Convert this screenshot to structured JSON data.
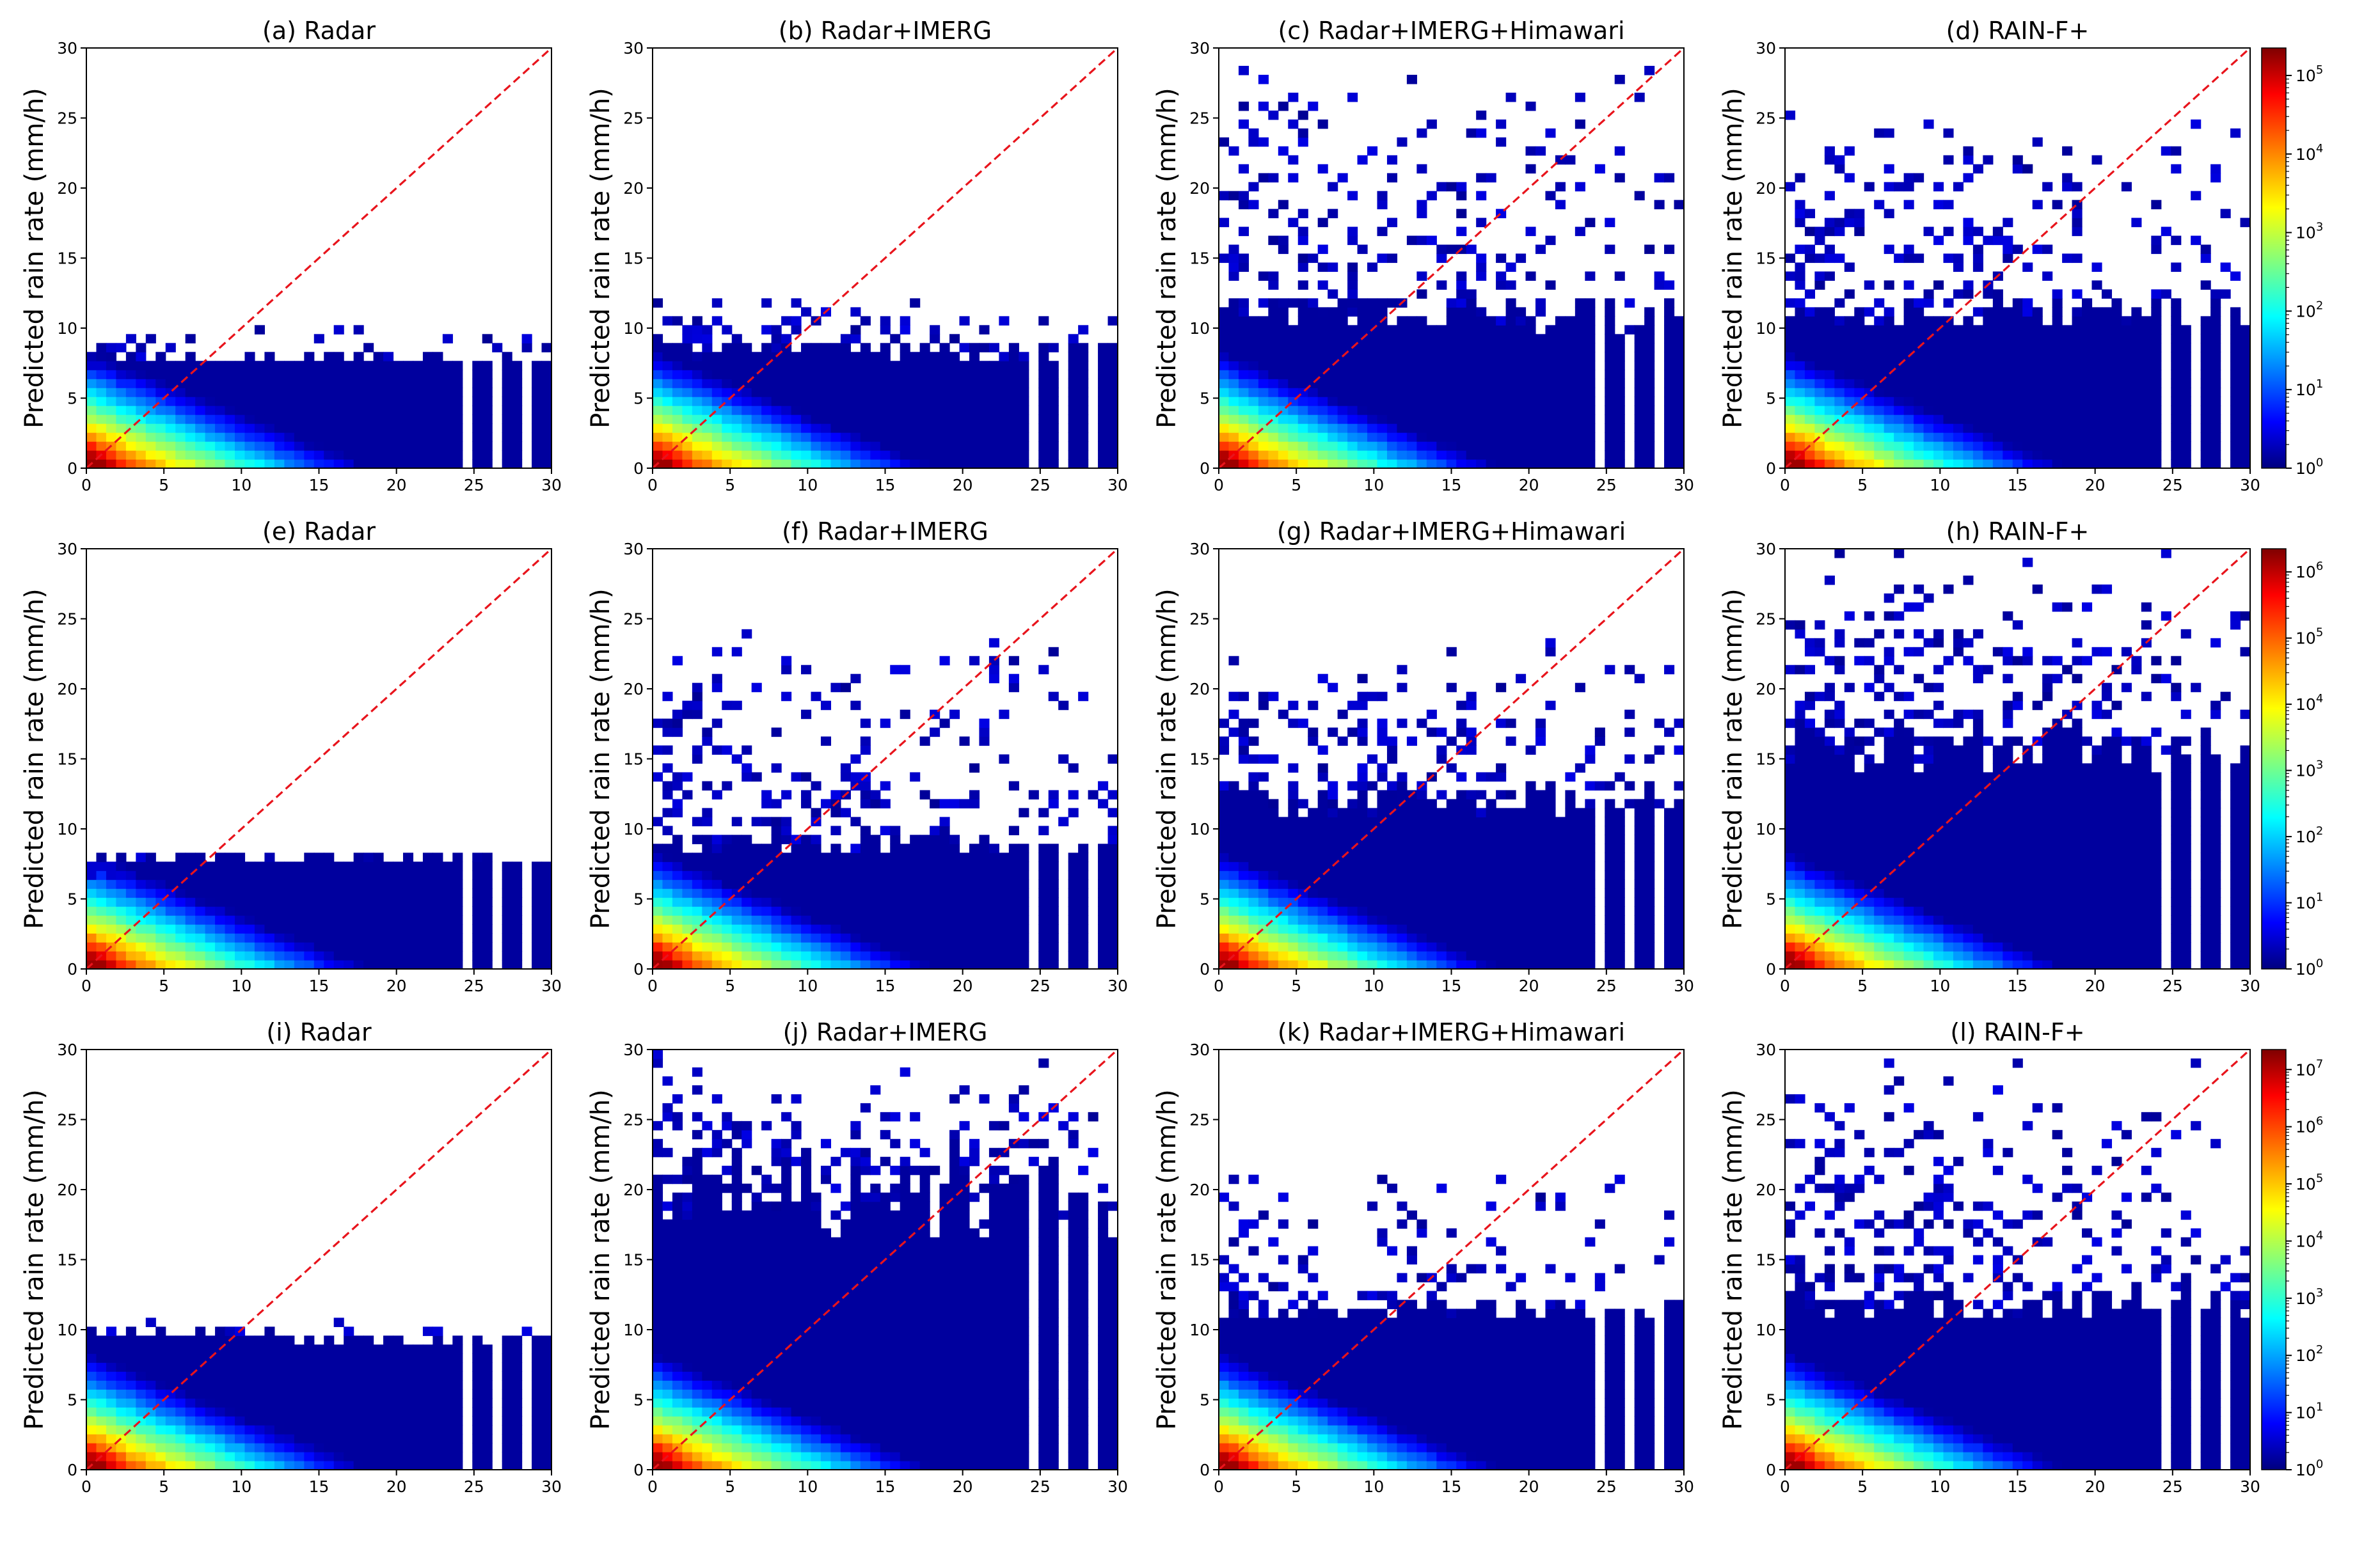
{
  "figure": {
    "ylabel": "Predicted rain rate (mm/h)"
  },
  "chart_data": [
    {
      "type": "heatmap",
      "title": "(a) Radar",
      "ylabel": "Predicted rain rate (mm/h)",
      "xlim": [
        0,
        30
      ],
      "ylim": [
        0,
        30
      ],
      "xticks": [
        "0",
        "5",
        "10",
        "15",
        "20",
        "25",
        "30"
      ],
      "yticks": [
        "0",
        "5",
        "10",
        "15",
        "20",
        "25",
        "30"
      ],
      "cap": 8,
      "capJitter": 0.9,
      "scatterMax": 10,
      "scatterDensity": 0.35,
      "gaps": [
        24.5,
        26.6,
        28.5
      ],
      "diagonal": "red dashed y=x",
      "colorscale_max_exp": 5
    },
    {
      "type": "heatmap",
      "title": "(b) Radar+IMERG",
      "ylabel": "Predicted rain rate (mm/h)",
      "xlim": [
        0,
        30
      ],
      "ylim": [
        0,
        30
      ],
      "xticks": [
        "0",
        "5",
        "10",
        "15",
        "20",
        "25",
        "30"
      ],
      "yticks": [
        "0",
        "5",
        "10",
        "15",
        "20",
        "25",
        "30"
      ],
      "cap": 8.5,
      "capJitter": 1.5,
      "scatterMax": 13,
      "scatterDensity": 0.4,
      "gaps": [
        24.5,
        26.6,
        28.5
      ],
      "diagonal": "red dashed y=x",
      "colorscale_max_exp": 5
    },
    {
      "type": "heatmap",
      "title": "(c) Radar+IMERG+Himawari",
      "ylabel": "Predicted rain rate (mm/h)",
      "xlim": [
        0,
        30
      ],
      "ylim": [
        0,
        30
      ],
      "xticks": [
        "0",
        "5",
        "10",
        "15",
        "20",
        "25",
        "30"
      ],
      "yticks": [
        "0",
        "5",
        "10",
        "15",
        "20",
        "25",
        "30"
      ],
      "cap": 11,
      "capJitter": 2.5,
      "scatterMax": 29.5,
      "scatterDensity": 0.45,
      "gaps": [
        24.5,
        26.6,
        28.5
      ],
      "diagonal": "red dashed y=x",
      "colorscale_max_exp": 5
    },
    {
      "type": "heatmap",
      "title": "(d) RAIN-F+",
      "ylabel": "Predicted rain rate (mm/h)",
      "xlim": [
        0,
        30
      ],
      "ylim": [
        0,
        30
      ],
      "xticks": [
        "0",
        "5",
        "10",
        "15",
        "20",
        "25",
        "30"
      ],
      "yticks": [
        "0",
        "5",
        "10",
        "15",
        "20",
        "25",
        "30"
      ],
      "cap": 11,
      "capJitter": 2,
      "scatterMax": 27,
      "scatterDensity": 0.4,
      "gaps": [
        24.5,
        26.6,
        28.5
      ],
      "diagonal": "red dashed y=x",
      "colorscale_max_exp": 5
    },
    {
      "type": "heatmap",
      "title": "(e) Radar",
      "ylabel": "Predicted rain rate (mm/h)",
      "xlim": [
        0,
        30
      ],
      "ylim": [
        0,
        30
      ],
      "xticks": [
        "0",
        "5",
        "10",
        "15",
        "20",
        "25",
        "30"
      ],
      "yticks": [
        "0",
        "5",
        "10",
        "15",
        "20",
        "25",
        "30"
      ],
      "cap": 8,
      "capJitter": 0.4,
      "scatterMax": 8.5,
      "scatterDensity": 0.25,
      "gaps": [
        24.5,
        26.6,
        28.5
      ],
      "diagonal": "red dashed y=x",
      "colorscale_max_exp": 6
    },
    {
      "type": "heatmap",
      "title": "(f) Radar+IMERG",
      "ylabel": "Predicted rain rate (mm/h)",
      "xlim": [
        0,
        30
      ],
      "ylim": [
        0,
        30
      ],
      "xticks": [
        "0",
        "5",
        "10",
        "15",
        "20",
        "25",
        "30"
      ],
      "yticks": [
        "0",
        "5",
        "10",
        "15",
        "20",
        "25",
        "30"
      ],
      "cap": 9,
      "capJitter": 2,
      "scatterMax": 25.5,
      "scatterDensity": 0.4,
      "gaps": [
        24.5,
        26.6,
        28.5
      ],
      "diagonal": "red dashed y=x",
      "colorscale_max_exp": 6
    },
    {
      "type": "heatmap",
      "title": "(g) Radar+IMERG+Himawari",
      "ylabel": "Predicted rain rate (mm/h)",
      "xlim": [
        0,
        30
      ],
      "ylim": [
        0,
        30
      ],
      "xticks": [
        "0",
        "5",
        "10",
        "15",
        "20",
        "25",
        "30"
      ],
      "yticks": [
        "0",
        "5",
        "10",
        "15",
        "20",
        "25",
        "30"
      ],
      "cap": 12,
      "capJitter": 2.5,
      "scatterMax": 23.5,
      "scatterDensity": 0.45,
      "gaps": [
        24.5,
        26.6,
        28.5
      ],
      "diagonal": "red dashed y=x",
      "colorscale_max_exp": 6
    },
    {
      "type": "heatmap",
      "title": "(h) RAIN-F+",
      "ylabel": "Predicted rain rate (mm/h)",
      "xlim": [
        0,
        30
      ],
      "ylim": [
        0,
        30
      ],
      "xticks": [
        "0",
        "5",
        "10",
        "15",
        "20",
        "25",
        "30"
      ],
      "yticks": [
        "0",
        "5",
        "10",
        "15",
        "20",
        "25",
        "30"
      ],
      "cap": 16,
      "capJitter": 4,
      "scatterMax": 30,
      "scatterDensity": 0.5,
      "gaps": [
        24.5,
        26.6,
        28.5
      ],
      "diagonal": "red dashed y=x",
      "colorscale_max_exp": 6
    },
    {
      "type": "heatmap",
      "title": "(i) Radar",
      "ylabel": "Predicted rain rate (mm/h)",
      "xlim": [
        0,
        30
      ],
      "ylim": [
        0,
        30
      ],
      "xticks": [
        "0",
        "5",
        "10",
        "15",
        "20",
        "25",
        "30"
      ],
      "yticks": [
        "0",
        "5",
        "10",
        "15",
        "20",
        "25",
        "30"
      ],
      "cap": 9.5,
      "capJitter": 1,
      "scatterMax": 11,
      "scatterDensity": 0.35,
      "gaps": [
        24.5,
        26.6,
        28.5
      ],
      "diagonal": "red dashed y=x",
      "colorscale_max_exp": 7
    },
    {
      "type": "heatmap",
      "title": "(j) Radar+IMERG",
      "ylabel": "Predicted rain rate (mm/h)",
      "xlim": [
        0,
        30
      ],
      "ylim": [
        0,
        30
      ],
      "xticks": [
        "0",
        "5",
        "10",
        "15",
        "20",
        "25",
        "30"
      ],
      "yticks": [
        "0",
        "5",
        "10",
        "15",
        "20",
        "25",
        "30"
      ],
      "cap": 20,
      "capJitter": 7,
      "scatterMax": 30,
      "scatterDensity": 0.55,
      "gaps": [
        24.5,
        26.6,
        28.5
      ],
      "diagonal": "red dashed y=x",
      "colorscale_max_exp": 7
    },
    {
      "type": "heatmap",
      "title": "(k) Radar+IMERG+Himawari",
      "ylabel": "Predicted rain rate (mm/h)",
      "xlim": [
        0,
        30
      ],
      "ylim": [
        0,
        30
      ],
      "xticks": [
        "0",
        "5",
        "10",
        "15",
        "20",
        "25",
        "30"
      ],
      "yticks": [
        "0",
        "5",
        "10",
        "15",
        "20",
        "25",
        "30"
      ],
      "cap": 11.5,
      "capJitter": 2,
      "scatterMax": 22,
      "scatterDensity": 0.35,
      "gaps": [
        24.5,
        26.6,
        28.5
      ],
      "diagonal": "red dashed y=x",
      "colorscale_max_exp": 7
    },
    {
      "type": "heatmap",
      "title": "(l) RAIN-F+",
      "ylabel": "Predicted rain rate (mm/h)",
      "xlim": [
        0,
        30
      ],
      "ylim": [
        0,
        30
      ],
      "xticks": [
        "0",
        "5",
        "10",
        "15",
        "20",
        "25",
        "30"
      ],
      "yticks": [
        "0",
        "5",
        "10",
        "15",
        "20",
        "25",
        "30"
      ],
      "cap": 12,
      "capJitter": 3,
      "scatterMax": 30,
      "scatterDensity": 0.45,
      "gaps": [
        24.5,
        26.6,
        28.5
      ],
      "diagonal": "red dashed y=x",
      "colorscale_max_exp": 7
    }
  ],
  "colorbars": [
    {
      "row": 1,
      "scale": "log",
      "labels": [
        "10",
        "10",
        "10",
        "10",
        "10",
        "10"
      ],
      "exponents": [
        "0",
        "1",
        "2",
        "3",
        "4",
        "5"
      ],
      "colormap": "jet"
    },
    {
      "row": 2,
      "scale": "log",
      "labels": [
        "10",
        "10",
        "10",
        "10",
        "10",
        "10",
        "10"
      ],
      "exponents": [
        "0",
        "1",
        "2",
        "3",
        "4",
        "5",
        "6"
      ],
      "colormap": "jet"
    },
    {
      "row": 3,
      "scale": "log",
      "labels": [
        "10",
        "10",
        "10",
        "10",
        "10",
        "10",
        "10",
        "10"
      ],
      "exponents": [
        "0",
        "1",
        "2",
        "3",
        "4",
        "5",
        "6",
        "7"
      ],
      "colormap": "jet"
    }
  ],
  "colors": {
    "diagonal": "#e8141c",
    "axis": "#000000"
  }
}
